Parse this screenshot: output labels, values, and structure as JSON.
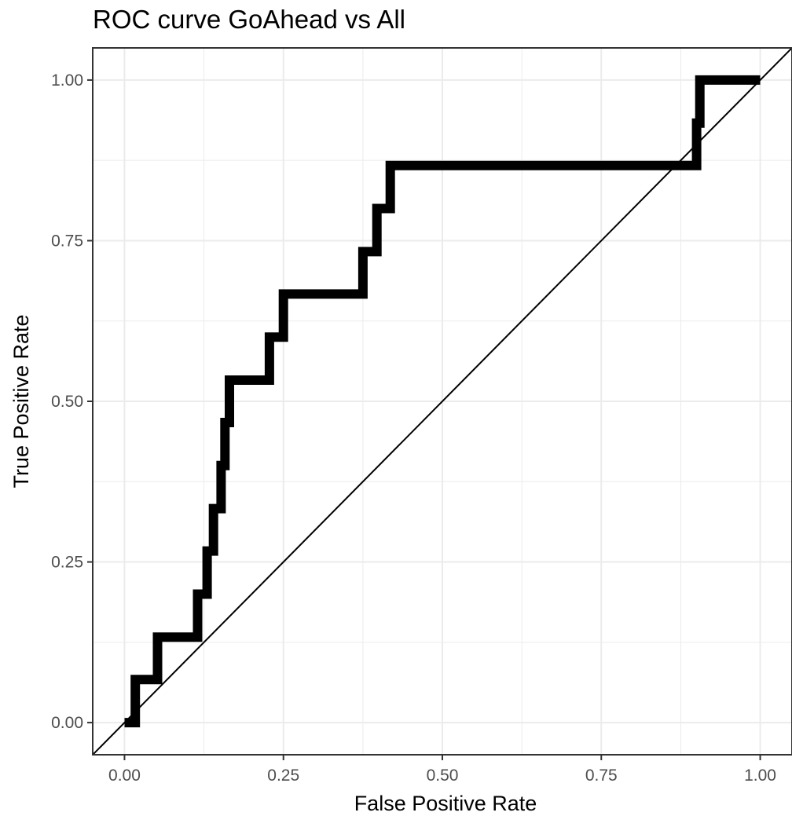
{
  "chart_data": {
    "type": "line",
    "title": "ROC curve GoAhead vs All",
    "xlabel": "False Positive Rate",
    "ylabel": "True Positive Rate",
    "xlim": [
      -0.05,
      1.05
    ],
    "ylim": [
      -0.05,
      1.05
    ],
    "x_ticks": [
      0.0,
      0.25,
      0.5,
      0.75,
      1.0
    ],
    "x_tick_labels": [
      "0.00",
      "0.25",
      "0.50",
      "0.75",
      "1.00"
    ],
    "y_ticks": [
      0.0,
      0.25,
      0.5,
      0.75,
      1.0
    ],
    "y_tick_labels": [
      "0.00",
      "0.25",
      "0.50",
      "0.75",
      "1.00"
    ],
    "grid": true,
    "reference_line": {
      "x": [
        -0.05,
        1.05
      ],
      "y": [
        -0.05,
        1.05
      ]
    },
    "series": [
      {
        "x": [
          0.0,
          0.017,
          0.017,
          0.052,
          0.052,
          0.115,
          0.115,
          0.13,
          0.13,
          0.14,
          0.14,
          0.152,
          0.152,
          0.158,
          0.158,
          0.165,
          0.165,
          0.228,
          0.228,
          0.25,
          0.25,
          0.375,
          0.375,
          0.397,
          0.397,
          0.418,
          0.418,
          0.9,
          0.9,
          0.905,
          0.905,
          1.0
        ],
        "y": [
          0.0,
          0.0,
          0.067,
          0.067,
          0.133,
          0.133,
          0.2,
          0.2,
          0.267,
          0.267,
          0.333,
          0.333,
          0.4,
          0.4,
          0.467,
          0.467,
          0.533,
          0.533,
          0.6,
          0.6,
          0.667,
          0.667,
          0.733,
          0.733,
          0.8,
          0.8,
          0.867,
          0.867,
          0.933,
          0.933,
          1.0,
          1.0
        ]
      }
    ],
    "colors": {
      "curve": "#000000",
      "grid": "#ebebeb",
      "panel_border": "#333333",
      "tick_label": "#4d4d4d"
    }
  }
}
